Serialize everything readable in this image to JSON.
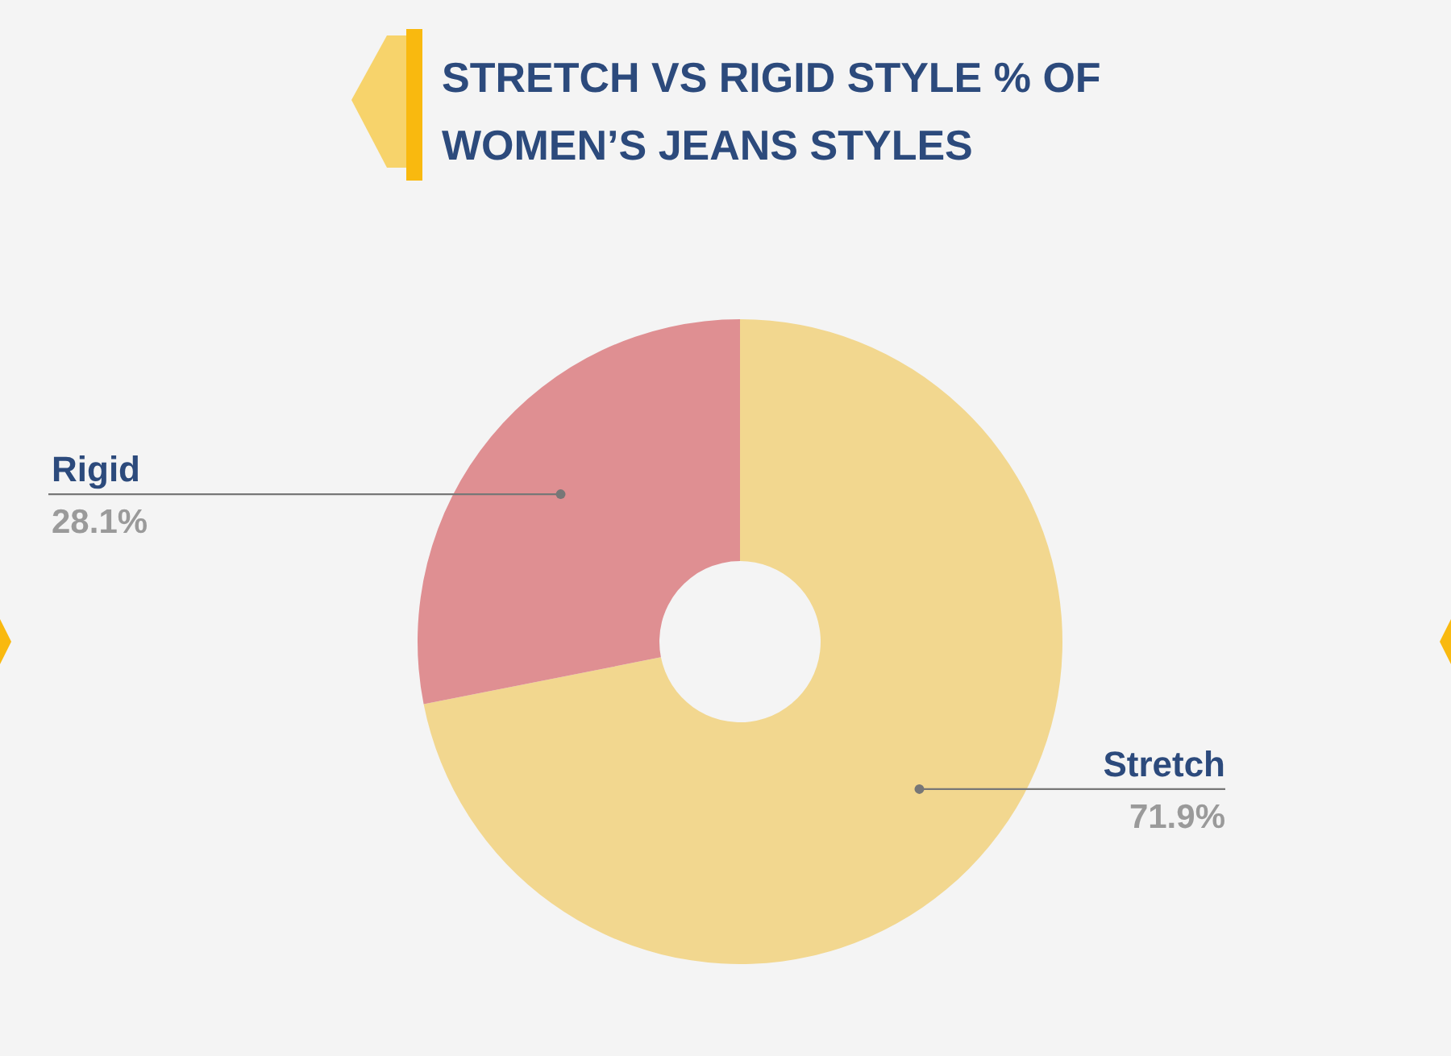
{
  "chart_data": {
    "type": "donut",
    "title": "STRETCH VS RIGID STYLE % OF WOMEN’S JEANS STYLES",
    "categories": [
      "Stretch",
      "Rigid"
    ],
    "values": [
      71.9,
      28.1
    ],
    "colors": [
      "#f2d78f",
      "#df8f92"
    ],
    "value_labels": [
      "71.9%",
      "28.1%"
    ],
    "legend": false
  }
}
